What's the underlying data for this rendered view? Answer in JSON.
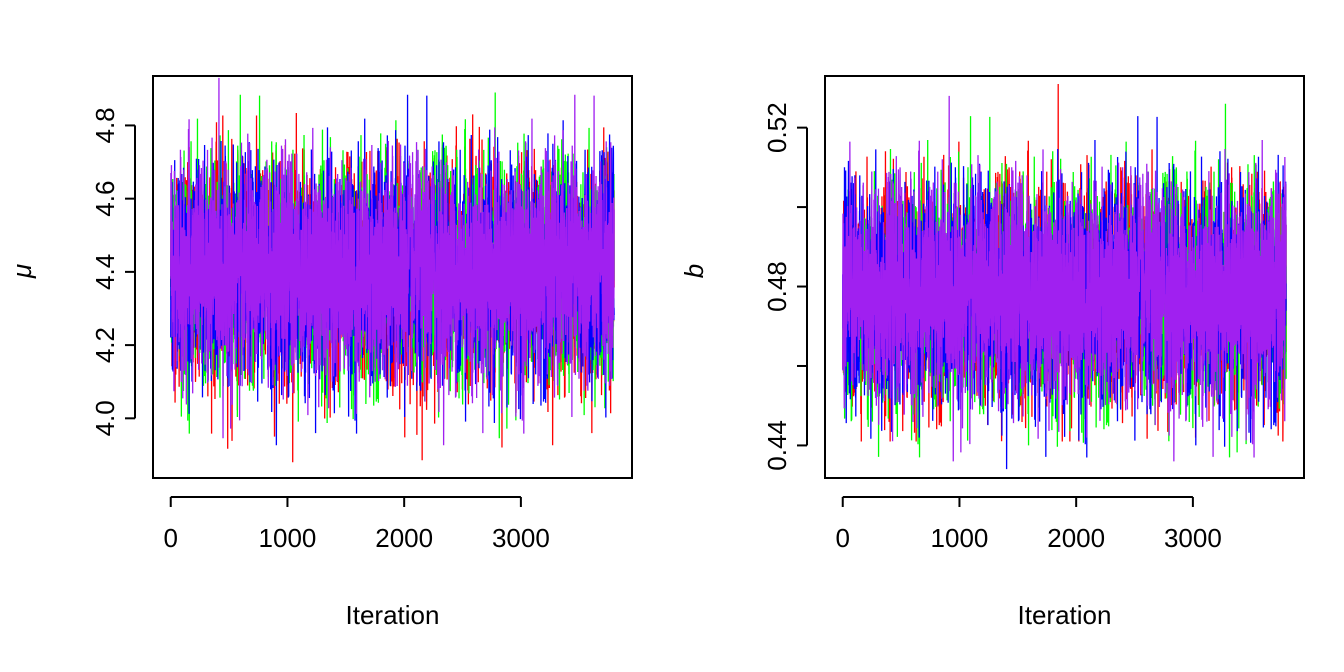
{
  "chart_data": [
    {
      "type": "line",
      "title": "",
      "xlabel": "Iteration",
      "ylabel": "μ",
      "xlim": [
        -152,
        3952
      ],
      "ylim": [
        3.837,
        4.935
      ],
      "xticks": [
        0,
        1000,
        2000,
        3000
      ],
      "xtick_labels": [
        "0",
        "1000",
        "2000",
        "3000"
      ],
      "yticks": [
        4.0,
        4.2,
        4.4,
        4.6,
        4.8
      ],
      "ytick_labels": [
        "4.0",
        "4.2",
        "4.4",
        "4.6",
        "4.8"
      ],
      "grid": false,
      "n_iterations": 3800,
      "series": [
        {
          "color": "#FF0000",
          "mean": 4.4,
          "sd": 0.14,
          "min": 3.88,
          "max": 4.88
        },
        {
          "color": "#00FF00",
          "mean": 4.4,
          "sd": 0.14,
          "min": 3.85,
          "max": 4.89
        },
        {
          "color": "#0000FF",
          "mean": 4.4,
          "sd": 0.14,
          "min": 3.9,
          "max": 4.93
        },
        {
          "color": "#A020F0",
          "mean": 4.4,
          "sd": 0.14,
          "min": 3.87,
          "max": 4.93
        }
      ]
    },
    {
      "type": "line",
      "title": "",
      "xlabel": "Iteration",
      "ylabel": "b",
      "xlim": [
        -152,
        3952
      ],
      "ylim": [
        0.4318,
        0.533
      ],
      "xticks": [
        0,
        1000,
        2000,
        3000
      ],
      "xtick_labels": [
        "0",
        "1000",
        "2000",
        "3000"
      ],
      "yticks": [
        0.44,
        0.46,
        0.48,
        0.5,
        0.52
      ],
      "ytick_labels": [
        "0.44",
        "",
        "0.48",
        "",
        "0.52"
      ],
      "grid": false,
      "n_iterations": 3800,
      "series": [
        {
          "color": "#FF0000",
          "mean": 0.478,
          "sd": 0.013,
          "min": 0.441,
          "max": 0.531
        },
        {
          "color": "#00FF00",
          "mean": 0.478,
          "sd": 0.013,
          "min": 0.437,
          "max": 0.526
        },
        {
          "color": "#0000FF",
          "mean": 0.478,
          "sd": 0.013,
          "min": 0.433,
          "max": 0.532
        },
        {
          "color": "#A020F0",
          "mean": 0.478,
          "sd": 0.013,
          "min": 0.436,
          "max": 0.528
        }
      ]
    }
  ]
}
